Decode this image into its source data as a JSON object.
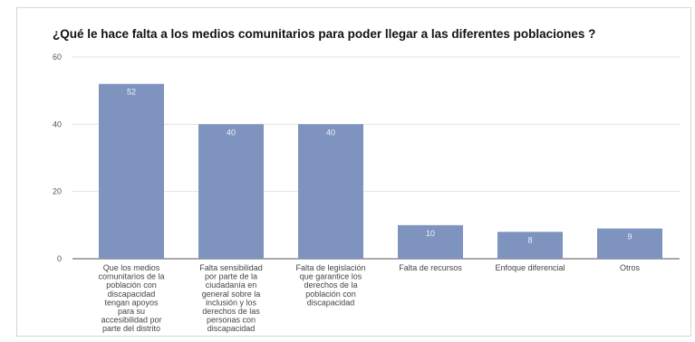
{
  "chart_data": {
    "type": "bar",
    "title": "¿Qué le hace falta a los medios comunitarios para poder llegar a las diferentes poblaciones ?",
    "xlabel": "",
    "ylabel": "",
    "ylim": [
      0,
      60
    ],
    "yticks": [
      0,
      20,
      40,
      60
    ],
    "grid": true,
    "legend": "none",
    "bar_color": "#7f93bf",
    "categories": [
      [
        "Que los medios",
        "comunitarios de la",
        "población con",
        "discapacidad",
        "tengan apoyos",
        "para su",
        "accesibilidad por",
        "parte del distrito"
      ],
      [
        "Falta sensibilidad",
        "por parte de la",
        "ciudadanía en",
        "general sobre la",
        "inclusión y los",
        "derechos de las",
        "personas con",
        "discapacidad"
      ],
      [
        "Falta de legislación",
        "que garantice los",
        "derechos de la",
        "población con",
        "discapacidad"
      ],
      [
        "Falta de recursos"
      ],
      [
        "Enfoque diferencial"
      ],
      [
        "Otros"
      ]
    ],
    "values": [
      52,
      40,
      40,
      10,
      8,
      9
    ]
  }
}
